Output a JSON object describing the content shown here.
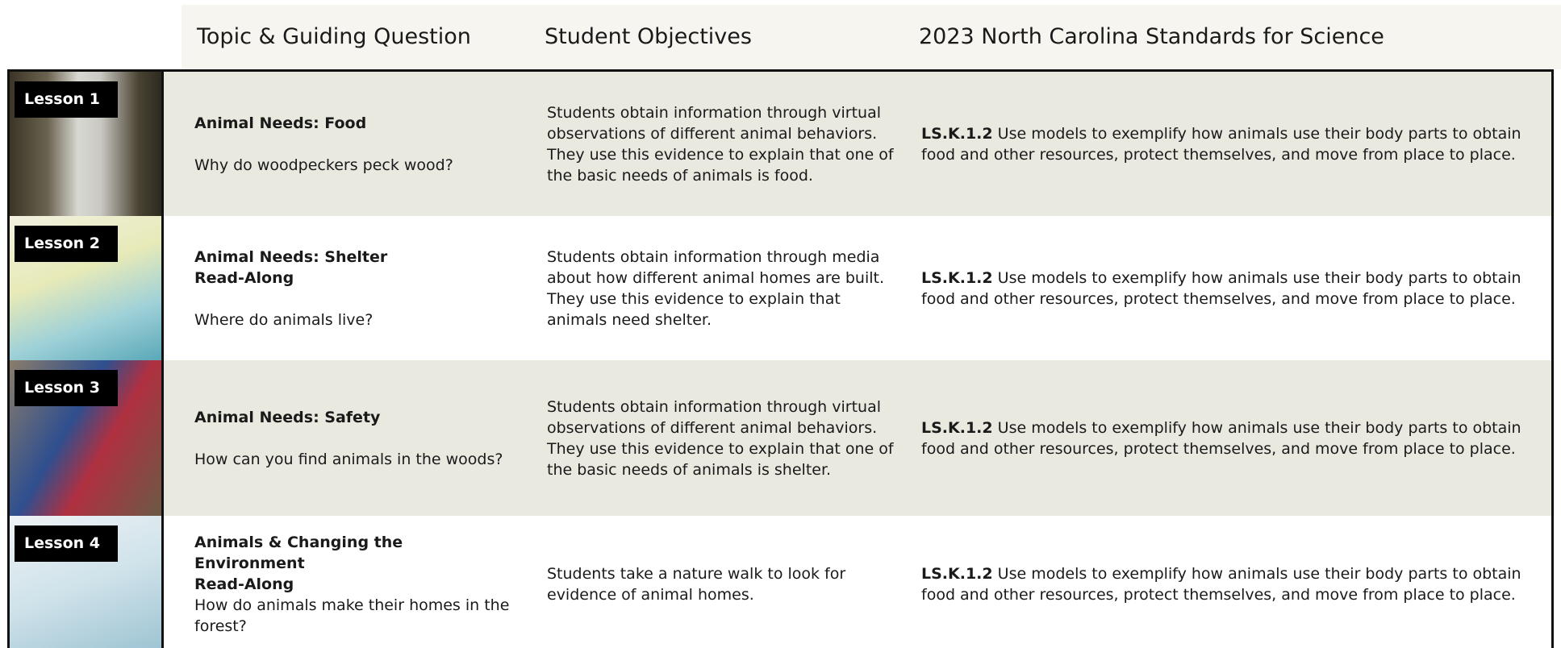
{
  "header": {
    "columns": [
      "Topic & Guiding Question",
      "Student Objectives",
      "2023 North Carolina Standards for Science"
    ]
  },
  "rows": [
    {
      "lesson": "Lesson 1",
      "topic": [
        "Animal Needs: Food"
      ],
      "question": "Why do woodpeckers peck wood?",
      "objectives": "Students obtain information through virtual observations of different animal behaviors. They use this evidence to explain that one of the basic needs of animals is food.",
      "standard_code": "LS.K.1.2",
      "standard_text": "Use models to exemplify how animals use their body parts to obtain food and other resources, protect themselves, and move from place to place."
    },
    {
      "lesson": "Lesson 2",
      "topic": [
        "Animal Needs: Shelter",
        "Read-Along"
      ],
      "question": "Where do animals live?",
      "objectives": "Students obtain information through media about how different animal homes are built. They use this evidence to explain that animals need shelter.",
      "standard_code": "LS.K.1.2",
      "standard_text": "Use models to exemplify how animals use their body parts to obtain food and other resources, protect themselves, and move from place to place."
    },
    {
      "lesson": "Lesson 3",
      "topic": [
        "Animal Needs: Safety"
      ],
      "question": "How can you find animals in the woods?",
      "objectives": "Students obtain information through virtual observations of different animal behaviors. They use this evidence to explain that one of the basic needs of animals is shelter.",
      "standard_code": "LS.K.1.2",
      "standard_text": "Use models to exemplify how animals use their body parts to obtain food and other resources, protect themselves, and move from place to place."
    },
    {
      "lesson": "Lesson 4",
      "topic": [
        "Animals & Changing the Environment",
        "Read-Along"
      ],
      "question": "How do animals make their homes in the forest?",
      "objectives": "Students take a nature walk to look for evidence of animal homes.",
      "standard_code": "LS.K.1.2",
      "standard_text": "Use models to exemplify how animals use their body parts to obtain food and other resources, protect themselves, and move from place to place."
    }
  ]
}
